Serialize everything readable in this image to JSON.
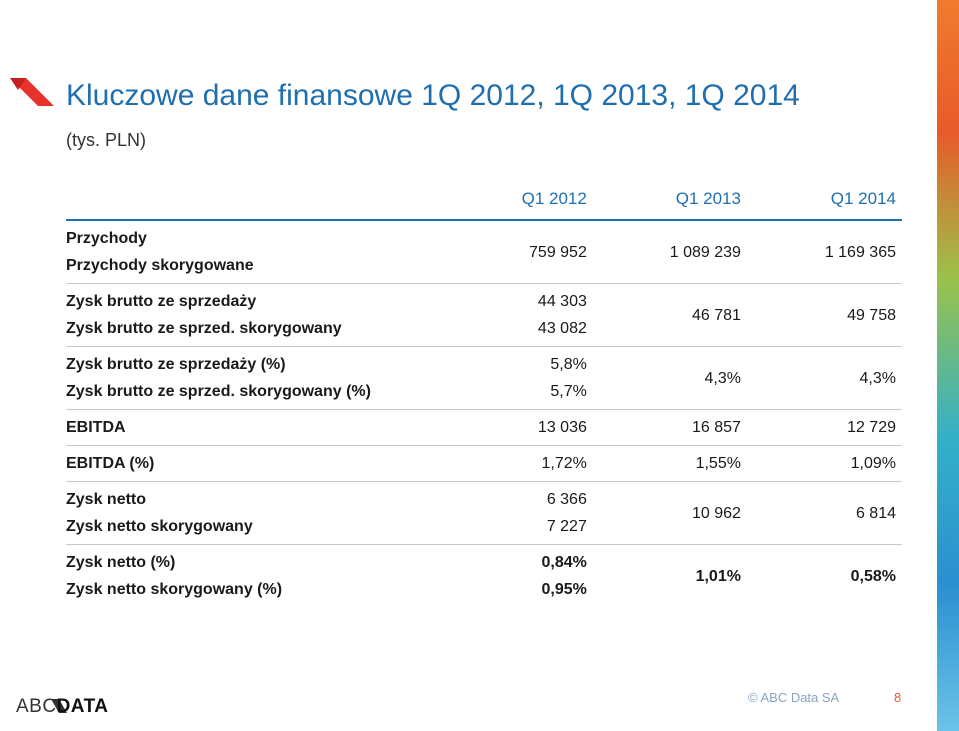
{
  "title": "Kluczowe dane finansowe 1Q 2012, 1Q 2013, 1Q 2014",
  "subtitle": "(tys. PLN)",
  "columns": [
    "Q1 2012",
    "Q1 2013",
    "Q1 2014"
  ],
  "rows": [
    {
      "labels": [
        "Przychody",
        "Przychody skorygowane"
      ],
      "q2012": [
        "759 952"
      ],
      "q2013": [
        "1 089 239"
      ],
      "q2014": [
        "1 169 365"
      ],
      "bold": false
    },
    {
      "labels": [
        "Zysk brutto ze sprzedaży",
        "Zysk brutto ze sprzed. skorygowany"
      ],
      "q2012": [
        "44 303",
        "43 082"
      ],
      "q2013": [
        "46 781"
      ],
      "q2014": [
        "49 758"
      ],
      "bold": false
    },
    {
      "labels": [
        "Zysk brutto ze sprzedaży (%)",
        "Zysk brutto ze sprzed. skorygowany (%)"
      ],
      "q2012": [
        "5,8%",
        "5,7%"
      ],
      "q2013": [
        "4,3%"
      ],
      "q2014": [
        "4,3%"
      ],
      "bold": false
    },
    {
      "labels": [
        "EBITDA"
      ],
      "q2012": [
        "13 036"
      ],
      "q2013": [
        "16 857"
      ],
      "q2014": [
        "12 729"
      ],
      "bold": false
    },
    {
      "labels": [
        "EBITDA (%)"
      ],
      "q2012": [
        "1,72%"
      ],
      "q2013": [
        "1,55%"
      ],
      "q2014": [
        "1,09%"
      ],
      "bold": false
    },
    {
      "labels": [
        "Zysk netto",
        "Zysk netto skorygowany"
      ],
      "q2012": [
        "6 366",
        "7 227"
      ],
      "q2013": [
        "10 962"
      ],
      "q2014": [
        "6 814"
      ],
      "bold": false
    },
    {
      "labels": [
        "Zysk netto (%)",
        "Zysk netto skorygowany (%)"
      ],
      "q2012": [
        "0,84%",
        "0,95%"
      ],
      "q2013": [
        "1,01%"
      ],
      "q2014": [
        "0,58%"
      ],
      "bold": true
    }
  ],
  "footer": {
    "logo_abc": "ABC",
    "logo_data": "DATA",
    "copyright": "© ABC Data SA",
    "page_number": "8"
  },
  "colors": {
    "accent": "#1f6fb0",
    "brand_red": "#e8312a",
    "stripe_orange": "#f07b2e"
  }
}
